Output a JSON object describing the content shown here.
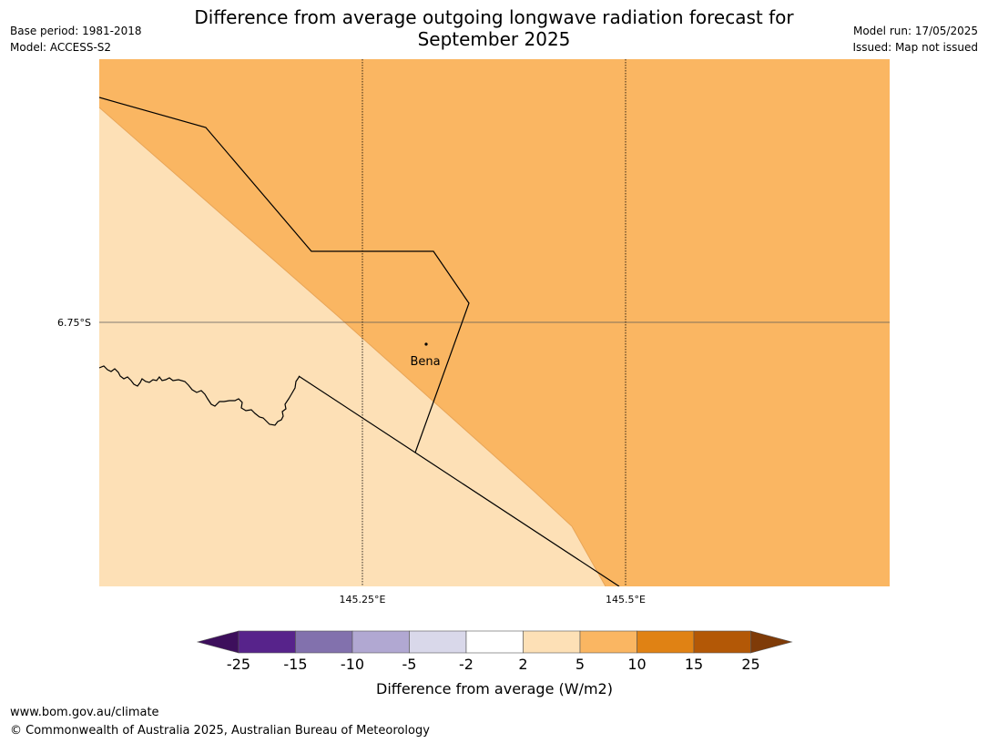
{
  "title_line1": "Difference from average outgoing longwave radiation forecast for",
  "title_line2": "September 2025",
  "base_period": "Base period: 1981-2018",
  "model": "Model: ACCESS-S2",
  "model_run": "Model run: 17/05/2025",
  "issued": "Issued: Map not issued",
  "map": {
    "lat_label": "6.75°S",
    "lon_labels": [
      "145.25°E",
      "145.5°E"
    ],
    "place_label": "Bena"
  },
  "colorbar": {
    "title": "Difference from average (W/m2)",
    "ticks": [
      "-25",
      "-15",
      "-10",
      "-5",
      "-2",
      "2",
      "5",
      "10",
      "15",
      "25"
    ],
    "colors": [
      "#3d0f5c",
      "#57238b",
      "#8271ad",
      "#b1a8d2",
      "#d9d8ea",
      "#ffffff",
      "#fde0b6",
      "#fab662",
      "#e08214",
      "#b35806",
      "#7f3b08"
    ]
  },
  "footer_url": "www.bom.gov.au/climate",
  "footer_copyright": "© Commonwealth of Australia 2025, Australian Bureau of Meteorology"
}
